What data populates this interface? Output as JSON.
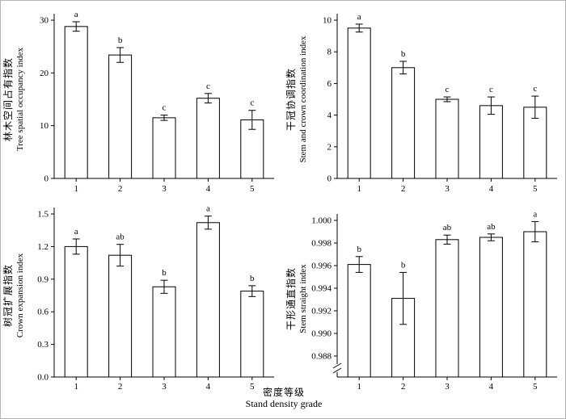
{
  "xaxis": {
    "label_cn": "密度等级",
    "label_en": "Stand density grade"
  },
  "chart_data": [
    {
      "type": "bar",
      "position": "top-left",
      "ylabel_cn": "林木空间占有指数",
      "ylabel_en": "Tree spatial occupancy index",
      "categories": [
        "1",
        "2",
        "3",
        "4",
        "5"
      ],
      "values": [
        28.8,
        23.4,
        11.5,
        15.2,
        11.1
      ],
      "errors": [
        0.9,
        1.4,
        0.5,
        0.9,
        1.8
      ],
      "letters": [
        "a",
        "b",
        "c",
        "c",
        "c"
      ],
      "ylim": [
        0,
        30
      ],
      "yticks": [
        0,
        10,
        20,
        30
      ],
      "ytick_labels": [
        "0",
        "10",
        "20",
        "30"
      ],
      "axis_break": false,
      "bar_fill": "#ffffff",
      "bar_stroke": "#000000",
      "grid": false
    },
    {
      "type": "bar",
      "position": "top-right",
      "ylabel_cn": "干冠协调指数",
      "ylabel_en": "Stem and crown coordination index",
      "categories": [
        "1",
        "2",
        "3",
        "4",
        "5"
      ],
      "values": [
        9.5,
        7.0,
        5.0,
        4.6,
        4.5
      ],
      "errors": [
        0.25,
        0.4,
        0.15,
        0.55,
        0.7
      ],
      "letters": [
        "a",
        "b",
        "c",
        "c",
        "c"
      ],
      "ylim": [
        0,
        10
      ],
      "yticks": [
        0,
        2,
        4,
        6,
        8,
        10
      ],
      "ytick_labels": [
        "0",
        "2",
        "4",
        "6",
        "8",
        "10"
      ],
      "axis_break": false,
      "bar_fill": "#ffffff",
      "bar_stroke": "#000000",
      "grid": false
    },
    {
      "type": "bar",
      "position": "bottom-left",
      "ylabel_cn": "树冠扩展指数",
      "ylabel_en": "Crown expansion index",
      "categories": [
        "1",
        "2",
        "3",
        "4",
        "5"
      ],
      "values": [
        1.2,
        1.12,
        0.83,
        1.42,
        0.79
      ],
      "errors": [
        0.07,
        0.1,
        0.06,
        0.06,
        0.05
      ],
      "letters": [
        "a",
        "ab",
        "b",
        "a",
        "b"
      ],
      "ylim": [
        0,
        1.5
      ],
      "yticks": [
        0,
        0.3,
        0.6,
        0.9,
        1.2,
        1.5
      ],
      "ytick_labels": [
        "0.0",
        "0.3",
        "0.6",
        "0.9",
        "1.2",
        "1.5"
      ],
      "axis_break": false,
      "bar_fill": "#ffffff",
      "bar_stroke": "#000000",
      "grid": false
    },
    {
      "type": "bar",
      "position": "bottom-right",
      "ylabel_cn": "干形通直指数",
      "ylabel_en": "Stem straight index",
      "categories": [
        "1",
        "2",
        "3",
        "4",
        "5"
      ],
      "values": [
        0.9961,
        0.9931,
        0.9983,
        0.9985,
        0.999
      ],
      "errors": [
        0.0007,
        0.0023,
        0.0004,
        0.0003,
        0.0009
      ],
      "letters": [
        "b",
        "b",
        "ab",
        "ab",
        "a"
      ],
      "ylim": [
        0.988,
        1.0
      ],
      "yticks": [
        0.988,
        0.99,
        0.992,
        0.994,
        0.996,
        0.998,
        1.0
      ],
      "ytick_labels": [
        "0.988",
        "0.990",
        "0.992",
        "0.994",
        "0.996",
        "0.998",
        "1.000"
      ],
      "axis_break": true,
      "bar_fill": "#ffffff",
      "bar_stroke": "#000000",
      "grid": false
    }
  ]
}
